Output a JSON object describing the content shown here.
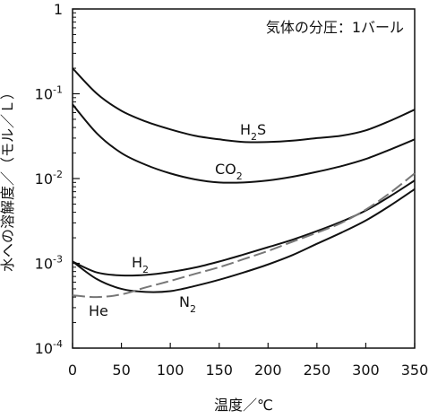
{
  "chart_data": {
    "type": "line",
    "xlabel": "温度／℃",
    "ylabel": "水への溶解度／（モル／Ｌ）",
    "xlim": [
      0,
      350
    ],
    "ylim": [
      0.0001,
      1
    ],
    "yscale": "log",
    "grid": false,
    "x_ticks": [
      "0",
      "50",
      "100",
      "150",
      "200",
      "250",
      "300",
      "350"
    ],
    "y_ticks": [
      {
        "base": "1",
        "exp": ""
      },
      {
        "base": "10",
        "exp": "-1"
      },
      {
        "base": "10",
        "exp": "-2"
      },
      {
        "base": "10",
        "exp": "-3"
      },
      {
        "base": "10",
        "exp": "-4"
      }
    ],
    "annotation": "気体の分圧：1バール",
    "series": [
      {
        "name": "H2S",
        "label_main": "H",
        "label_sub": "2",
        "label_tail": "S",
        "color": "#111111",
        "dash": false,
        "x": [
          0,
          25,
          50,
          75,
          100,
          125,
          150,
          175,
          200,
          225,
          250,
          275,
          300,
          325,
          350
        ],
        "y": [
          0.2,
          0.1,
          0.063,
          0.047,
          0.038,
          0.032,
          0.029,
          0.027,
          0.027,
          0.028,
          0.03,
          0.032,
          0.037,
          0.048,
          0.065
        ]
      },
      {
        "name": "CO2",
        "label_main": "CO",
        "label_sub": "2",
        "label_tail": "",
        "color": "#111111",
        "dash": false,
        "x": [
          0,
          25,
          50,
          75,
          100,
          125,
          150,
          175,
          200,
          225,
          250,
          275,
          300,
          325,
          350
        ],
        "y": [
          0.075,
          0.034,
          0.02,
          0.0145,
          0.0115,
          0.0098,
          0.009,
          0.009,
          0.0095,
          0.0105,
          0.012,
          0.014,
          0.017,
          0.022,
          0.029
        ]
      },
      {
        "name": "H2",
        "label_main": "H",
        "label_sub": "2",
        "label_tail": "",
        "color": "#111111",
        "dash": false,
        "x": [
          0,
          25,
          50,
          75,
          100,
          125,
          150,
          175,
          200,
          225,
          250,
          275,
          300,
          325,
          350
        ],
        "y": [
          0.00105,
          0.00078,
          0.00072,
          0.00073,
          0.00079,
          0.00089,
          0.00105,
          0.00127,
          0.00155,
          0.0019,
          0.0024,
          0.0031,
          0.0042,
          0.0062,
          0.0095
        ]
      },
      {
        "name": "N2",
        "label_main": "N",
        "label_sub": "2",
        "label_tail": "",
        "color": "#111111",
        "dash": false,
        "x": [
          0,
          25,
          50,
          75,
          100,
          125,
          150,
          175,
          200,
          225,
          250,
          275,
          300,
          325,
          350
        ],
        "y": [
          0.00105,
          0.00065,
          0.0005,
          0.00046,
          0.00047,
          0.00054,
          0.00064,
          0.00078,
          0.00097,
          0.00125,
          0.0017,
          0.0023,
          0.0032,
          0.0048,
          0.0075
        ]
      },
      {
        "name": "He",
        "label_main": "He",
        "label_sub": "",
        "label_tail": "",
        "color": "#777777",
        "dash": true,
        "x": [
          0,
          25,
          50,
          75,
          100,
          125,
          150,
          175,
          200,
          225,
          250,
          275,
          300,
          325,
          350
        ],
        "y": [
          0.00042,
          0.0004,
          0.00043,
          0.00052,
          0.00062,
          0.00075,
          0.0009,
          0.00112,
          0.0014,
          0.0018,
          0.0023,
          0.003,
          0.0043,
          0.0068,
          0.0115
        ]
      }
    ]
  }
}
